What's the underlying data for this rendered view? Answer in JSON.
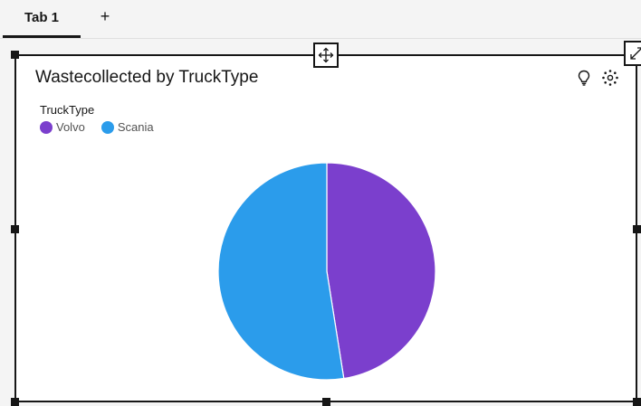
{
  "tabs": [
    {
      "label": "Tab 1"
    }
  ],
  "tab_add_label": "+",
  "widget": {
    "title": "Wastecollected by TruckType",
    "legend_title": "TruckType",
    "icons": {
      "move": "move-icon",
      "expand": "expand-icon",
      "insight": "lightbulb-icon",
      "settings": "focus-icon"
    }
  },
  "colors": {
    "volvo": "#7b3fcd",
    "scania": "#2b9ceb",
    "accent": "#161616"
  },
  "chart_data": {
    "type": "pie",
    "title": "Wastecollected by TruckType",
    "legend_title": "TruckType",
    "legend_position": "top-left",
    "categories": [
      "Volvo",
      "Scania"
    ],
    "values": [
      47.5,
      52.5
    ],
    "colors": [
      "#7b3fcd",
      "#2b9ceb"
    ]
  }
}
